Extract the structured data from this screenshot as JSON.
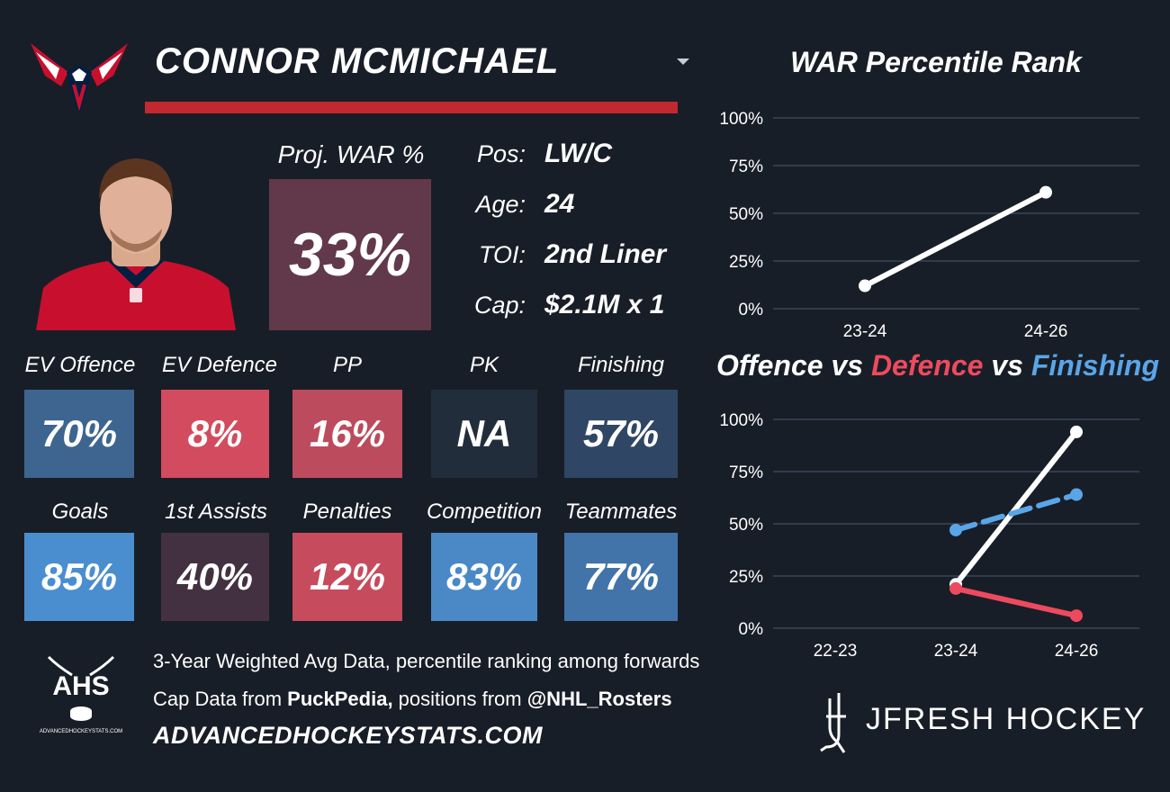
{
  "player": {
    "name": "CONNOR MCMICHAEL",
    "proj_war_label": "Proj. WAR %",
    "proj_war_value": "33%",
    "bio": [
      {
        "label": "Pos:",
        "value": "LW/C"
      },
      {
        "label": "Age:",
        "value": "24"
      },
      {
        "label": "TOI:",
        "value": "2nd Liner"
      },
      {
        "label": "Cap:",
        "value": "$2.1M x 1"
      }
    ]
  },
  "tiles": [
    {
      "label": "EV Offence",
      "value": "70%",
      "color": "#3d6590"
    },
    {
      "label": "EV Defence",
      "value": "8%",
      "color": "#d34b5e"
    },
    {
      "label": "PP",
      "value": "16%",
      "color": "#bb4b5d"
    },
    {
      "label": "PK",
      "value": "NA",
      "color": "#222d3c"
    },
    {
      "label": "Finishing",
      "value": "57%",
      "color": "#2f4765"
    },
    {
      "label": "Goals",
      "value": "85%",
      "color": "#4b8ecf"
    },
    {
      "label": "1st Assists",
      "value": "40%",
      "color": "#433142"
    },
    {
      "label": "Penalties",
      "value": "12%",
      "color": "#c64b5d"
    },
    {
      "label": "Competition",
      "value": "83%",
      "color": "#4a89c6"
    },
    {
      "label": "Teammates",
      "value": "77%",
      "color": "#4274aa"
    }
  ],
  "footer": {
    "line1": "3-Year Weighted Avg Data, percentile ranking among forwards",
    "line2_pre": "Cap Data from ",
    "line2_bold1": "PuckPedia,",
    "line2_mid": " positions from ",
    "line2_bold2": "@NHL_Rosters",
    "url": "ADVANCEDHOCKEYSTATS.COM",
    "ahs_logo_text": "AHS",
    "ahs_logo_sub": "ADVANCEDHOCKEYSTATS.COM",
    "brand": "JFRESH HOCKEY"
  },
  "chart_data": [
    {
      "type": "line",
      "title": "WAR Percentile Rank",
      "categories": [
        "23-24",
        "24-26"
      ],
      "series": [
        {
          "values": [
            12,
            61
          ],
          "color": "#ffffff"
        }
      ],
      "ylim": [
        0,
        100
      ],
      "yticks": [
        "0%",
        "25%",
        "50%",
        "75%",
        "100%"
      ],
      "grid": true
    },
    {
      "type": "line",
      "title_parts": [
        "Offence",
        " vs ",
        "Defence",
        " vs ",
        "Finishing"
      ],
      "categories": [
        "22-23",
        "23-24",
        "24-26"
      ],
      "series": [
        {
          "name": "Offence",
          "values": [
            null,
            21,
            94
          ],
          "color": "#ffffff",
          "dashed": false
        },
        {
          "name": "Defence",
          "values": [
            null,
            19,
            6
          ],
          "color": "#ee4a5f",
          "dashed": false
        },
        {
          "name": "Finishing",
          "values": [
            null,
            47,
            64
          ],
          "color": "#5aa5e8",
          "dashed": true
        }
      ],
      "ylim": [
        0,
        100
      ],
      "yticks": [
        "0%",
        "25%",
        "50%",
        "75%",
        "100%"
      ],
      "grid": true
    }
  ]
}
